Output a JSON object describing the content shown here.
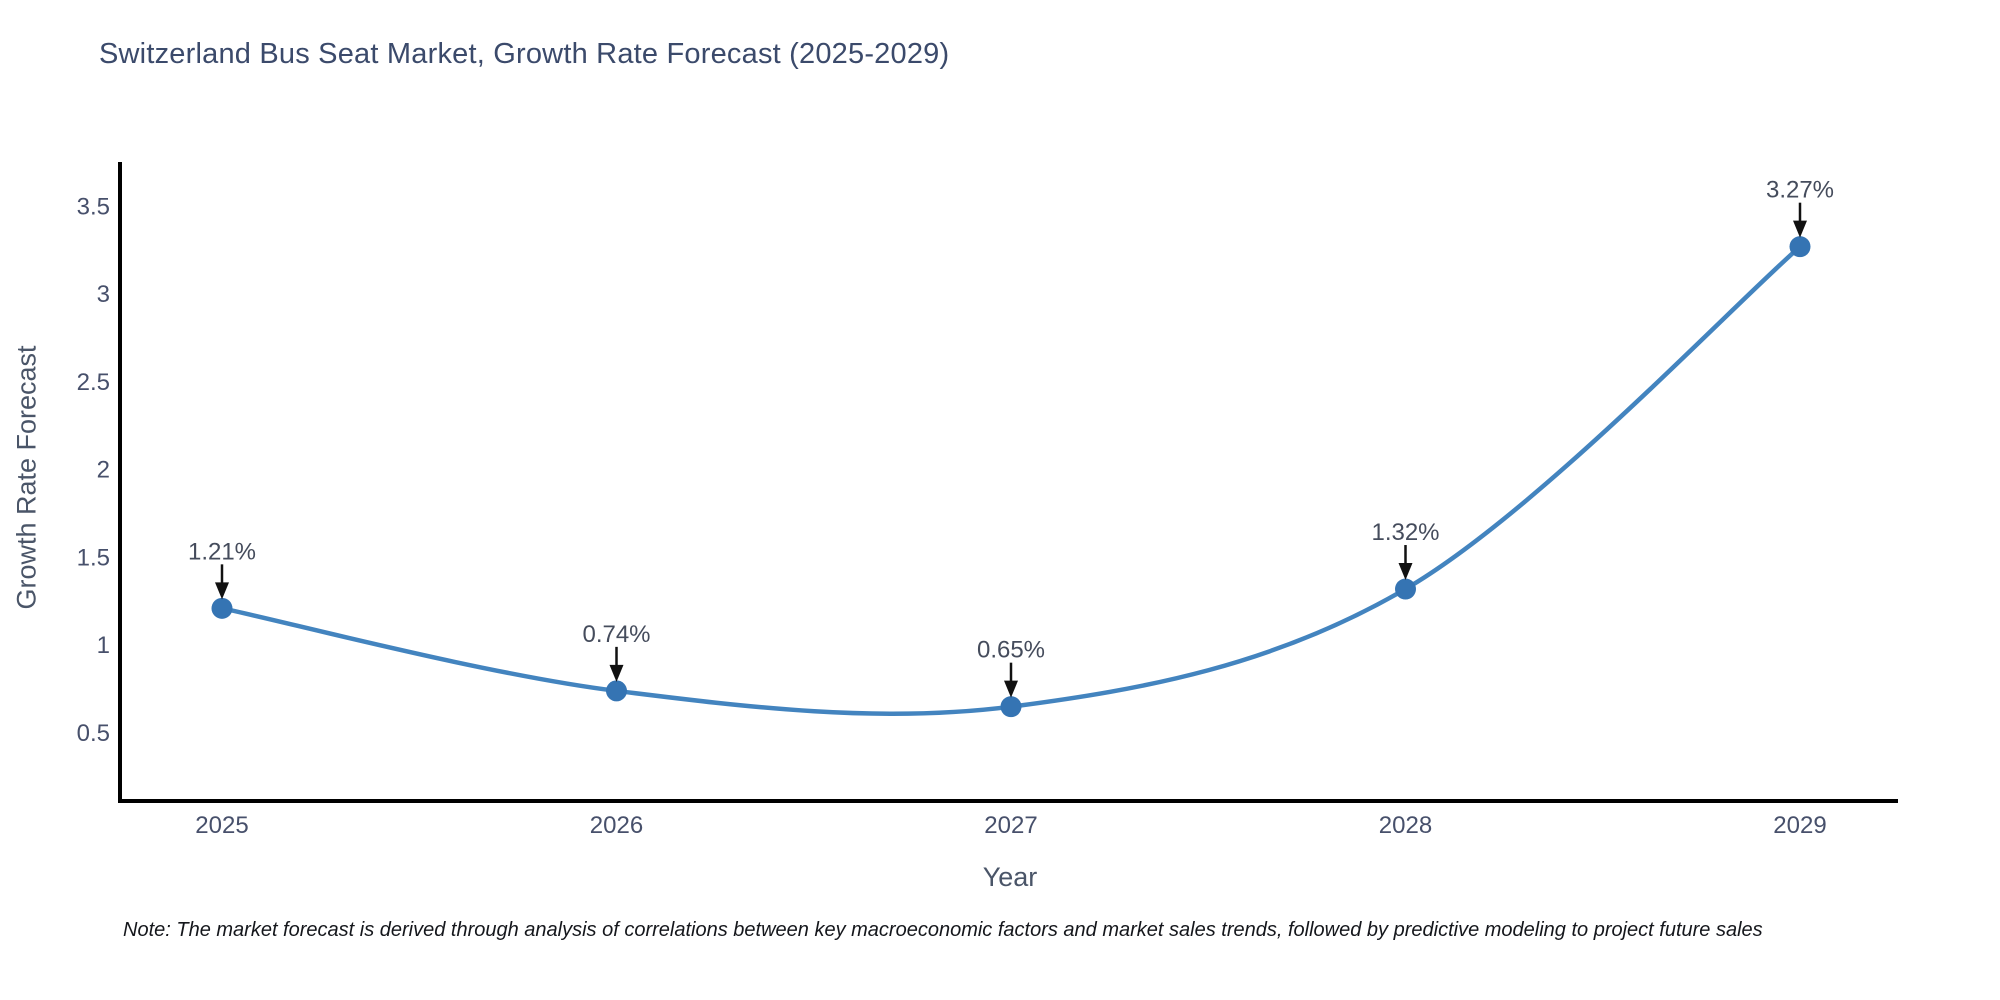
{
  "title": "Switzerland Bus Seat Market, Growth Rate Forecast (2025-2029)",
  "note": "Note: The market forecast is derived through analysis of correlations between key macroeconomic factors and market sales trends, followed by predictive modeling to project future sales",
  "chart_data": {
    "type": "line",
    "title": "Switzerland Bus Seat Market, Growth Rate Forecast (2025-2029)",
    "xlabel": "Year",
    "ylabel": "Growth Rate Forecast",
    "x": [
      2025,
      2026,
      2027,
      2028,
      2029
    ],
    "values": [
      1.21,
      0.74,
      0.65,
      1.32,
      3.27
    ],
    "point_labels": [
      "1.21%",
      "0.74%",
      "0.65%",
      "1.32%",
      "3.27%"
    ],
    "y_ticks": [
      0.5,
      1,
      1.5,
      2,
      2.5,
      3,
      3.5
    ],
    "ylim": [
      0.11,
      3.75
    ],
    "grid": false,
    "legend": "none",
    "line_shape": "spline",
    "colors": {
      "line": "#4384bf",
      "marker": "#3574b3",
      "arrow": "#111111",
      "axis": "#000000",
      "tick_text": "#47506b",
      "annotation_text": "#454c5c"
    }
  }
}
